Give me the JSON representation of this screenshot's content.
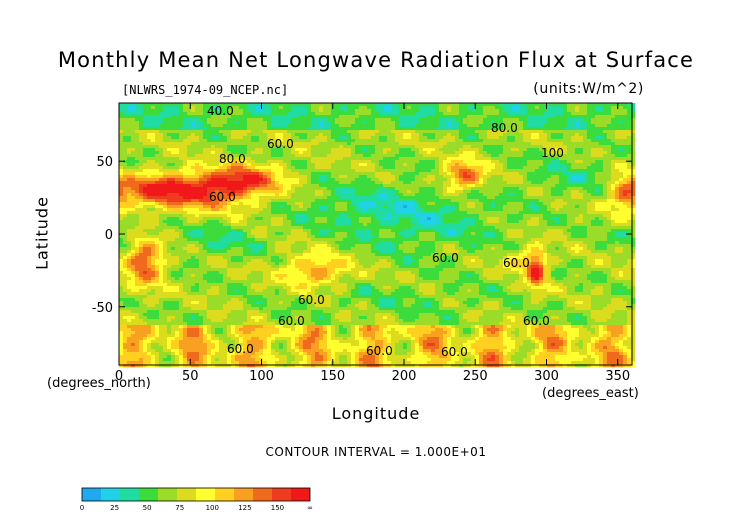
{
  "title": "Monthly Mean Net Longwave Radiation Flux at Surface",
  "file_label": "[NLWRS_1974-09_NCEP.nc]",
  "units_label": "(units:W/m^2)",
  "contour_interval": "CONTOUR INTERVAL = 1.000E+01",
  "chart_data": {
    "type": "heatmap",
    "title": "Monthly Mean Net Longwave Radiation Flux at Surface",
    "xlabel": "Longitude",
    "ylabel": "Latitude",
    "x_unit": "(degrees_east)",
    "y_unit": "(degrees_north)",
    "xlim": [
      0,
      360
    ],
    "ylim": [
      -90,
      90
    ],
    "x_ticks": [
      0,
      50,
      100,
      150,
      200,
      250,
      300,
      350
    ],
    "y_ticks": [
      50,
      0,
      -50
    ],
    "contour_labels": [
      "40.0",
      "60.0",
      "80.0",
      "100",
      "60.0",
      "60.0",
      "60.0",
      "60.0",
      "60.0",
      "60.0",
      "60.0",
      "60.0",
      "60.0",
      "80.0"
    ],
    "colorbar": {
      "labels": [
        "0",
        "25",
        "50",
        "75",
        "100",
        "125",
        "150",
        "∞"
      ],
      "colors": [
        "#20a8f0",
        "#20d2e8",
        "#20dca0",
        "#3cdc3c",
        "#9adc28",
        "#dcdc1e",
        "#ffff30",
        "#ffd020",
        "#f8a020",
        "#f06a1e",
        "#f03c1e",
        "#f01818"
      ]
    }
  }
}
